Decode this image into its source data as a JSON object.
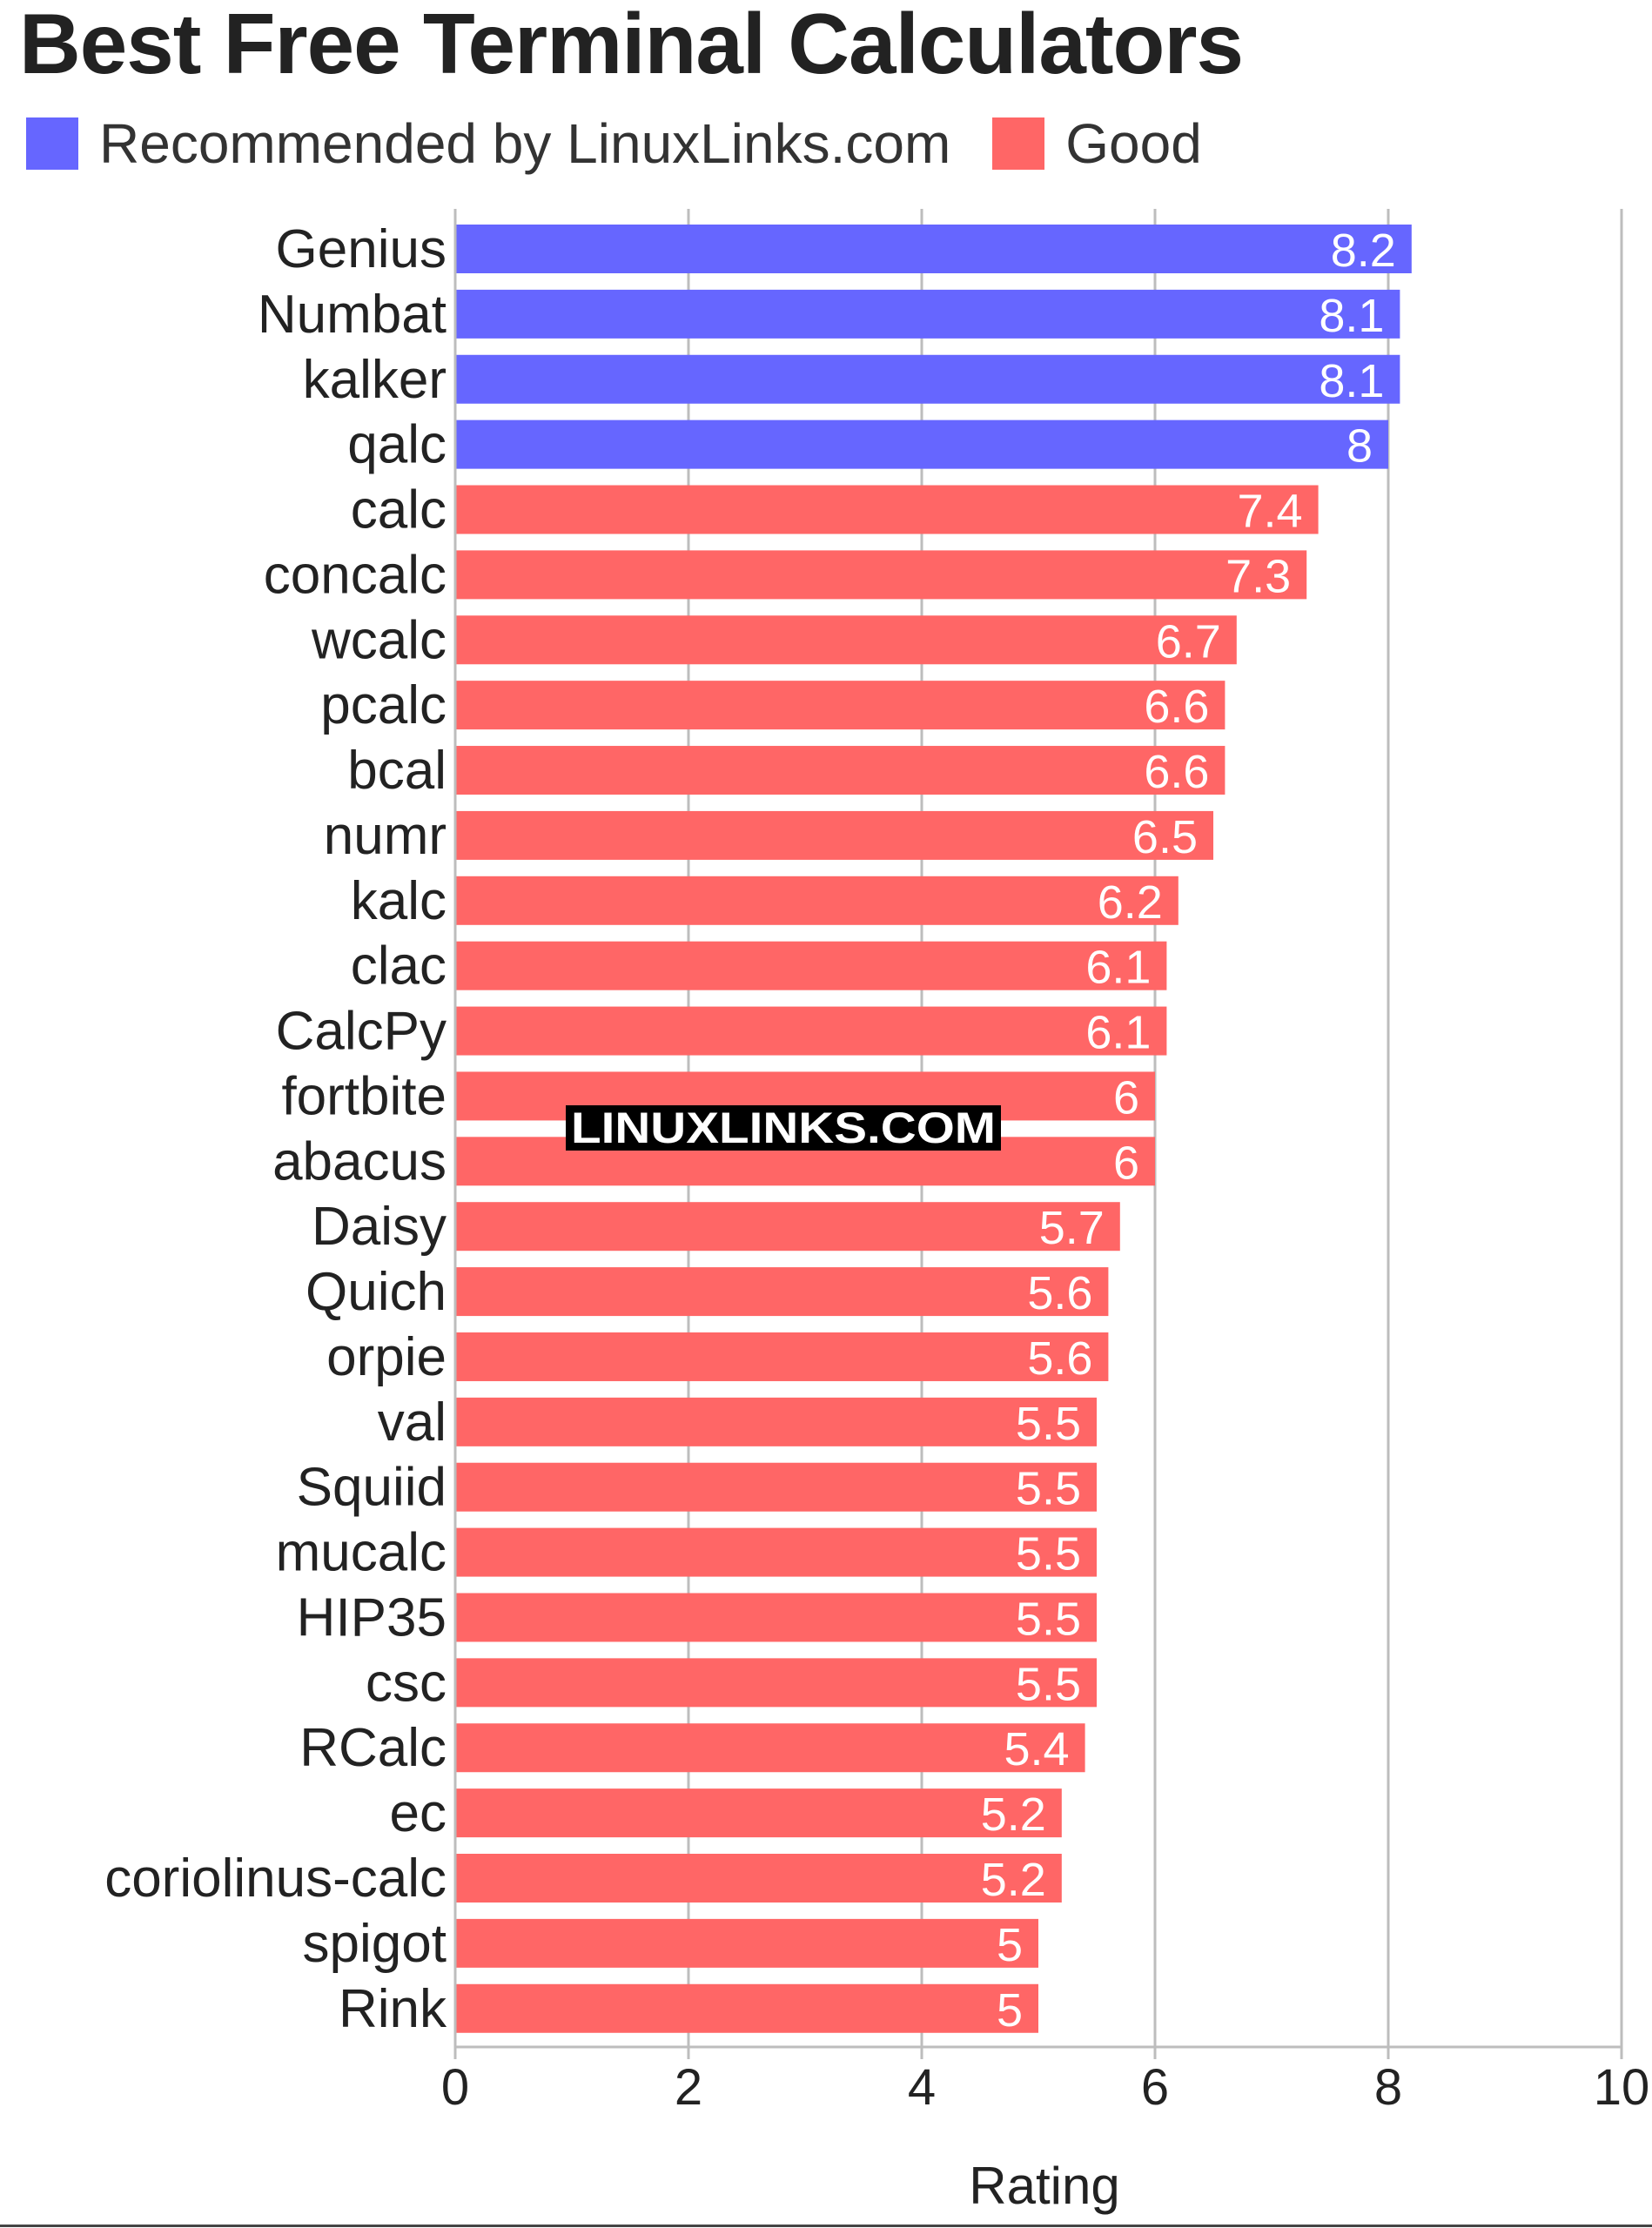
{
  "chart_data": {
    "type": "bar",
    "orientation": "horizontal",
    "title": "Best Free Terminal Calculators",
    "xlabel": "Rating",
    "ylabel": "",
    "xlim": [
      0,
      10
    ],
    "xticks": [
      0,
      2,
      4,
      6,
      8,
      10
    ],
    "grid": true,
    "legend_position": "top-left",
    "watermark": "LINUXLINKS.COM",
    "legend": [
      {
        "label": "Recommended by LinuxLinks.com",
        "color": "#6666ff"
      },
      {
        "label": "Good",
        "color": "#ff6666"
      }
    ],
    "categories": [
      "Genius",
      "Numbat",
      "kalker",
      "qalc",
      "calc",
      "concalc",
      "wcalc",
      "pcalc",
      "bcal",
      "numr",
      "kalc",
      "clac",
      "CalcPy",
      "fortbite",
      "abacus",
      "Daisy",
      "Quich",
      "orpie",
      "val",
      "Squiid",
      "mucalc",
      "HIP35",
      "csc",
      "RCalc",
      "ec",
      "coriolinus-calc",
      "spigot",
      "Rink"
    ],
    "values": [
      8.2,
      8.1,
      8.1,
      8,
      7.4,
      7.3,
      6.7,
      6.6,
      6.6,
      6.5,
      6.2,
      6.1,
      6.1,
      6,
      6,
      5.7,
      5.6,
      5.6,
      5.5,
      5.5,
      5.5,
      5.5,
      5.5,
      5.4,
      5.2,
      5.2,
      5,
      5
    ],
    "groups": [
      "Recommended by LinuxLinks.com",
      "Recommended by LinuxLinks.com",
      "Recommended by LinuxLinks.com",
      "Recommended by LinuxLinks.com",
      "Good",
      "Good",
      "Good",
      "Good",
      "Good",
      "Good",
      "Good",
      "Good",
      "Good",
      "Good",
      "Good",
      "Good",
      "Good",
      "Good",
      "Good",
      "Good",
      "Good",
      "Good",
      "Good",
      "Good",
      "Good",
      "Good",
      "Good",
      "Good"
    ]
  }
}
